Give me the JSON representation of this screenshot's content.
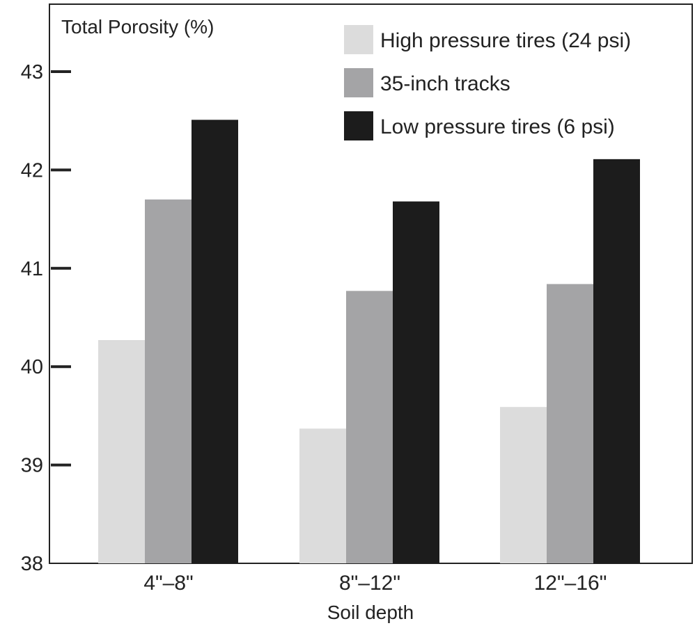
{
  "chart_data": {
    "type": "bar",
    "ylabel": "Total Porosity (%)",
    "xlabel": "Soil depth",
    "categories": [
      "4\"–8\"",
      "8\"–12\"",
      "12\"–16\""
    ],
    "ylim": [
      38,
      43.5
    ],
    "yticks": [
      "38",
      "39",
      "40",
      "41",
      "42",
      "43"
    ],
    "series": [
      {
        "name": "High pressure tires (24 psi)",
        "color": "#dcdcdc",
        "values": [
          40.27,
          39.37,
          39.59
        ]
      },
      {
        "name": "35-inch tracks",
        "color": "#a4a4a6",
        "values": [
          41.7,
          40.77,
          40.84
        ]
      },
      {
        "name": "Low pressure tires (6 psi)",
        "color": "#1c1c1c",
        "values": [
          42.51,
          41.68,
          42.11
        ]
      }
    ],
    "legend_position": "top-right",
    "grid": false
  }
}
